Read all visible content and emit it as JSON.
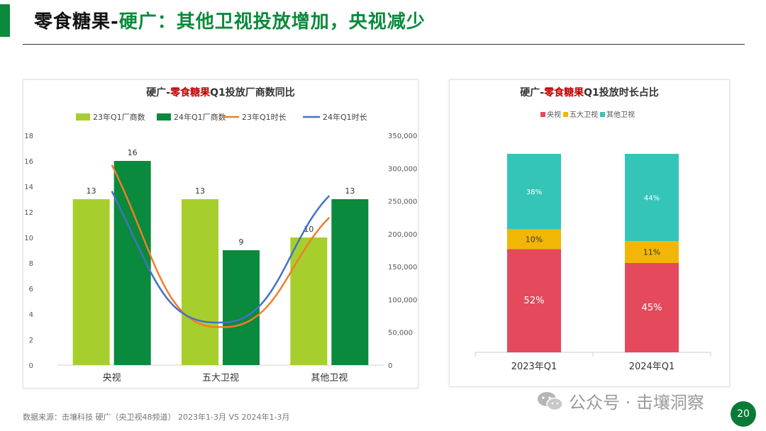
{
  "header": {
    "title_lead": "零食糖果-",
    "title_rest": "硬广：其他卫视投放增加，央视减少"
  },
  "colors": {
    "brand_green": "#0a8a3c",
    "bar_2023": "#a6cf2e",
    "bar_2024": "#0a8a3c",
    "line_2023": "#f07d2b",
    "line_2024": "#4472c4",
    "cctv": "#e44a5c",
    "five_sat": "#f2b705",
    "other_sat": "#35c4b8",
    "title_red": "#c00000"
  },
  "chart_data": [
    {
      "type": "bar",
      "title_parts": [
        "硬广-",
        "零食糖果",
        "Q1投放厂商数同比"
      ],
      "categories": [
        "央视",
        "五大卫视",
        "其他卫视"
      ],
      "series": [
        {
          "name": "23年Q1厂商数",
          "kind": "bar",
          "axis": "left",
          "values": [
            13,
            13,
            10
          ]
        },
        {
          "name": "24年Q1厂商数",
          "kind": "bar",
          "axis": "left",
          "values": [
            16,
            9,
            13
          ]
        },
        {
          "name": "23年Q1时长",
          "kind": "line",
          "axis": "right",
          "values": [
            305000,
            58000,
            225000
          ]
        },
        {
          "name": "24年Q1时长",
          "kind": "line",
          "axis": "right",
          "values": [
            265000,
            65000,
            258000
          ]
        }
      ],
      "ylim_left": [
        0,
        18
      ],
      "yticks_left": [
        "0",
        "2",
        "4",
        "6",
        "8",
        "10",
        "12",
        "14",
        "16",
        "18"
      ],
      "ylim_right": [
        0,
        350000
      ],
      "yticks_right": [
        "0",
        "50,000",
        "100,000",
        "150,000",
        "200,000",
        "250,000",
        "300,000",
        "350,000"
      ],
      "legend_position": "top",
      "grid": false
    },
    {
      "type": "bar",
      "stacked": true,
      "percent": true,
      "title_parts": [
        "硬广-",
        "零食糖果",
        "Q1投放时长占比"
      ],
      "categories": [
        "2023年Q1",
        "2024年Q1"
      ],
      "series": [
        {
          "name": "央视",
          "values": [
            52,
            45
          ],
          "labels": [
            "52%",
            "45%"
          ]
        },
        {
          "name": "五大卫视",
          "values": [
            10,
            11
          ],
          "labels": [
            "10%",
            "11%"
          ]
        },
        {
          "name": "其他卫视",
          "values": [
            38,
            44
          ],
          "labels": [
            "38%",
            "44%"
          ]
        }
      ],
      "legend_position": "top",
      "grid": false
    }
  ],
  "footer": {
    "source": "数据来源：击壤科技 硬广（央卫视48频道） 2023年1-3月 VS 2024年1-3月",
    "watermark": "公众号 · 击壤洞察",
    "page_number": "20"
  }
}
